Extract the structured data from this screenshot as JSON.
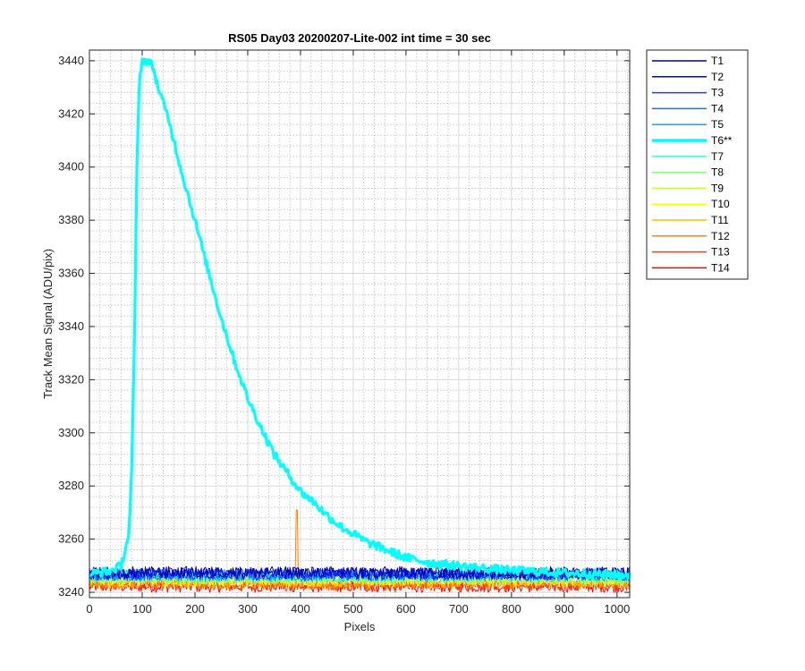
{
  "chart_data": {
    "type": "line",
    "title": "RS05 Day03 20200207-Lite-002 int time = 30 sec",
    "xlabel": "Pixels",
    "ylabel": "Track Mean Signal (ADU/pix)",
    "xlim": [
      0,
      1024
    ],
    "ylim": [
      3238,
      3444
    ],
    "x_ticks": [
      0,
      100,
      200,
      300,
      400,
      500,
      600,
      700,
      800,
      900,
      1000
    ],
    "y_ticks": [
      3240,
      3260,
      3280,
      3300,
      3320,
      3340,
      3360,
      3380,
      3400,
      3420,
      3440
    ],
    "grid": true,
    "minor_grid": true,
    "legend_position": "outside-right",
    "series": [
      {
        "name": "T1",
        "color": "#0000a8",
        "baseline": 3247.5,
        "noise": 1.6
      },
      {
        "name": "T2",
        "color": "#0000e6",
        "baseline": 3247.2,
        "noise": 1.6
      },
      {
        "name": "T3",
        "color": "#1a3cff",
        "baseline": 3246.8,
        "noise": 1.6
      },
      {
        "name": "T4",
        "color": "#0078ff",
        "baseline": 3246.6,
        "noise": 1.6
      },
      {
        "name": "T5",
        "color": "#00aaff",
        "baseline": 3246.3,
        "noise": 1.6
      },
      {
        "name": "T6**",
        "color": "#00ffff",
        "highlight": true,
        "x": [
          0,
          40,
          60,
          75,
          80,
          85,
          90,
          95,
          100,
          110,
          120,
          130,
          150,
          175,
          200,
          225,
          250,
          275,
          300,
          325,
          350,
          375,
          400,
          425,
          450,
          475,
          500,
          525,
          550,
          575,
          600,
          625,
          650,
          675,
          700,
          725,
          750,
          800,
          850,
          900,
          950,
          1000,
          1024
        ],
        "y": [
          3247,
          3248,
          3250,
          3262,
          3285,
          3330,
          3400,
          3435,
          3440,
          3440,
          3438,
          3430,
          3418,
          3398,
          3380,
          3361,
          3343,
          3327,
          3313,
          3302,
          3292,
          3285,
          3278,
          3274,
          3269,
          3265,
          3262,
          3259,
          3257,
          3255,
          3253,
          3252,
          3251,
          3250.5,
          3250,
          3249.5,
          3249,
          3248.2,
          3247.8,
          3247.3,
          3247,
          3246.6,
          3246.5
        ]
      },
      {
        "name": "T7",
        "color": "#40ffbf",
        "baseline": 3245.8,
        "noise": 1.6
      },
      {
        "name": "T8",
        "color": "#7fff7f",
        "baseline": 3245.4,
        "noise": 1.6
      },
      {
        "name": "T9",
        "color": "#bfff40",
        "baseline": 3245.0,
        "noise": 1.6
      },
      {
        "name": "T10",
        "color": "#ffff00",
        "baseline": 3244.5,
        "noise": 1.6
      },
      {
        "name": "T11",
        "color": "#ffbf00",
        "baseline": 3244.0,
        "noise": 1.6
      },
      {
        "name": "T12",
        "color": "#ff8000",
        "baseline": 3243.4,
        "noise": 1.6,
        "spike": {
          "x": 393,
          "y": 3271
        }
      },
      {
        "name": "T13",
        "color": "#ff4000",
        "baseline": 3242.8,
        "noise": 1.6
      },
      {
        "name": "T14",
        "color": "#ff0000",
        "baseline": 3242.2,
        "noise": 1.6
      }
    ]
  }
}
